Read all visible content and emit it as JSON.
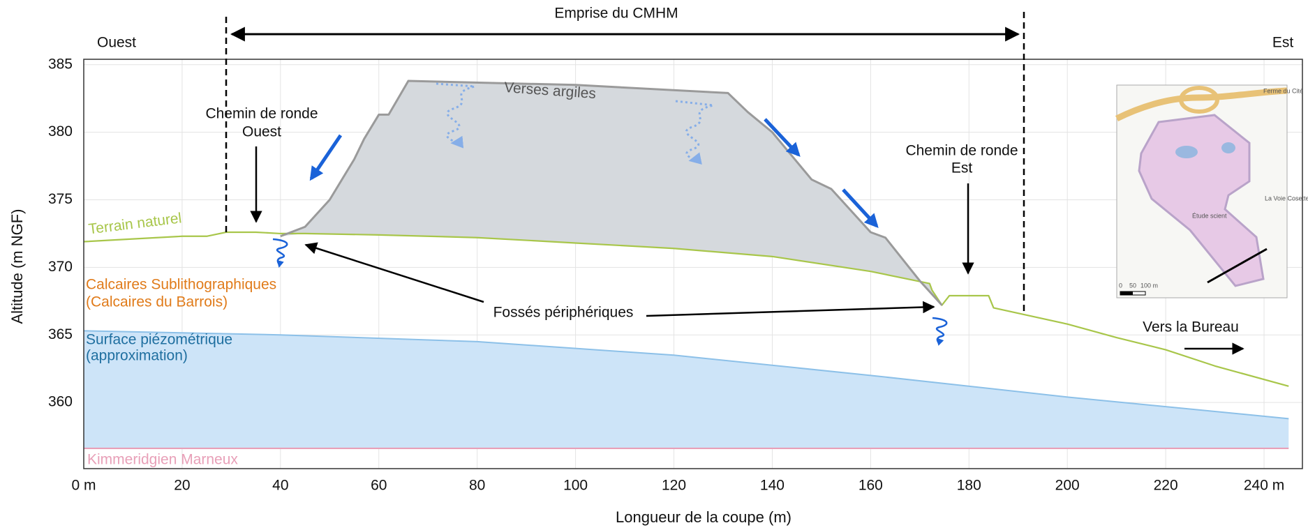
{
  "chart_data": {
    "type": "cross-section",
    "x_label": "Longueur de la coupe (m)",
    "y_label": "Altitude (m NGF)",
    "xlim": [
      0,
      247.8
    ],
    "ylim": [
      355.1,
      385.4
    ],
    "xticks": [
      {
        "value": 0,
        "label": "0 m"
      },
      20,
      40,
      60,
      80,
      100,
      120,
      140,
      160,
      180,
      200,
      220,
      {
        "value": 240,
        "label": "240 m"
      }
    ],
    "yticks": [
      360,
      365,
      370,
      375,
      380,
      385
    ],
    "grid": true,
    "series": [
      {
        "name": "Verses argiles",
        "type": "area",
        "color": "#9a9a9a",
        "fill": "#d5d9dd",
        "x": [
          40,
          45,
          50,
          55,
          57,
          60,
          62,
          66,
          100,
          131,
          135,
          140,
          148,
          152,
          160,
          163,
          170,
          174.5
        ],
        "values": [
          372.3,
          373,
          375,
          378,
          379.5,
          381.3,
          381.3,
          383.8,
          383.5,
          382.9,
          381.5,
          380,
          376.5,
          375.8,
          372.6,
          372.2,
          369,
          367.2
        ]
      },
      {
        "name": "Terrain naturel",
        "type": "line",
        "color": "#a8c64a",
        "x": [
          0,
          10,
          20,
          25,
          29,
          35,
          40,
          45,
          60,
          80,
          100,
          120,
          140,
          160,
          172,
          172.5,
          174.5,
          176,
          184,
          185,
          190,
          200,
          210,
          220,
          230,
          245
        ],
        "values": [
          371.9,
          372.1,
          372.3,
          372.3,
          372.6,
          372.6,
          372.5,
          372.5,
          372.4,
          372.2,
          371.8,
          371.4,
          370.8,
          369.7,
          368.8,
          368.3,
          367.2,
          367.9,
          367.9,
          367.0,
          366.6,
          365.8,
          364.8,
          363.9,
          362.7,
          361.2
        ]
      },
      {
        "type": "area",
        "color": "#8cc0e8",
        "fill": "#cde4f8",
        "x": [
          0,
          40,
          80,
          120,
          160,
          200,
          245
        ],
        "values": [
          365.3,
          365.0,
          364.5,
          363.5,
          362.0,
          360.4,
          358.8
        ]
      },
      {
        "name": "Kimmeridgien Marneux",
        "type": "line",
        "color": "#e8a0b8",
        "x": [
          0,
          245
        ],
        "values": [
          356.6,
          356.6
        ]
      }
    ],
    "annotations": {
      "emprise": "Emprise du CMHM",
      "west": "Ouest",
      "east": "Est",
      "chemin_ouest": [
        "Chemin de ronde",
        "Ouest"
      ],
      "chemin_est": [
        "Chemin de ronde",
        "Est"
      ],
      "fosses": "Fossés périphériques",
      "calcaires": [
        "Calcaires Sublithographiques",
        "(Calcaires du Barrois)"
      ],
      "piezo": [
        "Surface piézométrique",
        "(approximation)"
      ],
      "bureau": "Vers la Bureau"
    },
    "inset_map": {
      "labels": [
        "Ferme du Cité",
        "La Voie Cosette",
        "Étude scient"
      ],
      "scale": [
        "0",
        "50",
        "100 m"
      ]
    }
  }
}
